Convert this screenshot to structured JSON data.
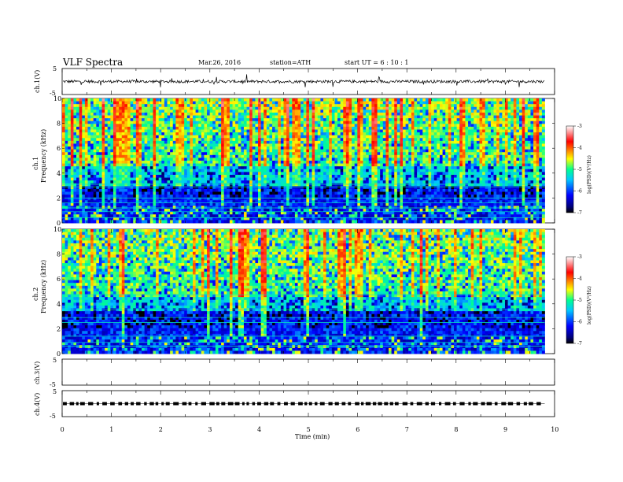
{
  "header": {
    "title": "VLF  Spectra",
    "date": "Mar.26, 2016",
    "station": "station=ATH",
    "start": "start  UT  =   6  : 10 : 1"
  },
  "chart_data": [
    {
      "type": "line",
      "name": "ch1-waveform",
      "ylabel": "ch.1(V)",
      "ylim": [
        -5,
        5
      ],
      "yticks": [
        "5",
        "-5"
      ],
      "xlim": [
        0,
        10
      ],
      "level": 0
    },
    {
      "type": "heatmap",
      "name": "ch1-spectrogram",
      "ylabel": "ch.1\nFrequency  (kHz)",
      "ylim": [
        0,
        10
      ],
      "yticks": [
        "0",
        "2",
        "4",
        "6",
        "8",
        "10"
      ],
      "xlim": [
        0,
        10
      ],
      "data_end_min": 9.8,
      "colorbar": {
        "label": "log(PSD)(V²/Hz)",
        "range": [
          -7,
          -3
        ],
        "ticks": [
          "-3",
          "-4",
          "-5",
          "-6",
          "-7"
        ]
      }
    },
    {
      "type": "heatmap",
      "name": "ch2-spectrogram",
      "ylabel": "ch.2\nFrequency  (kHz)",
      "ylim": [
        0,
        10
      ],
      "yticks": [
        "0",
        "2",
        "4",
        "6",
        "8",
        "10"
      ],
      "xlim": [
        0,
        10
      ],
      "data_end_min": 9.8,
      "colorbar": {
        "label": "log(PSD)(V²/Hz)",
        "range": [
          -7,
          -3
        ],
        "ticks": [
          "-3",
          "-4",
          "-5",
          "-6",
          "-7"
        ]
      }
    },
    {
      "type": "line",
      "name": "ch3-waveform",
      "ylabel": "ch.3(V)",
      "ylim": [
        -5,
        5
      ],
      "yticks": [
        "5",
        "-5"
      ],
      "xlim": [
        0,
        10
      ]
    },
    {
      "type": "line",
      "name": "ch4-waveform",
      "ylabel": "ch.4(V)",
      "ylim": [
        -5,
        5
      ],
      "yticks": [
        "5",
        "-5"
      ],
      "xlim": [
        0,
        10
      ],
      "xlabel": "Time  (min)",
      "xticks": [
        "0",
        "1",
        "2",
        "3",
        "4",
        "5",
        "6",
        "7",
        "8",
        "9",
        "10"
      ],
      "level": 0
    }
  ]
}
